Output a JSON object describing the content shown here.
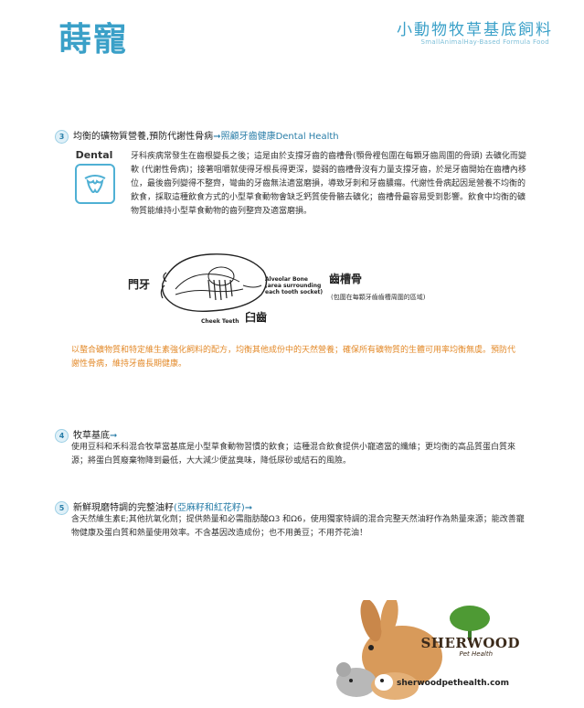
{
  "header": {
    "logo_text": "蒔寵",
    "title": "小動物牧草基底飼料",
    "subtitle": "SmallAnimalHay-Based Formula Food"
  },
  "section3": {
    "number": "3",
    "heading": "均衡的礦物質營養,預防代謝性骨病",
    "heading_link": "照顧牙齒健康Dental Health",
    "dental_label": "Dental",
    "paragraph": "牙科疾病常發生在齒根變長之後；這是由於支撐牙齒的齒槽骨(顎骨裡包圍在每顆牙齒周圍的骨頭) 去礦化而變軟 (代謝性骨病)；接著咀嚼就使得牙根長得更深，變弱的齒槽骨沒有力量支撐牙齒，於是牙齒開始在齒槽內移位，最後齒列變得不整齊，彎曲的牙齒無法適當磨損，導致牙刺和牙齒膿瘍。代謝性骨病起因是營養不均衡的飲食，採取這種飲食方式的小型草食動物會缺乏鈣質使骨骼去礦化；齒槽骨最容易受到影響。飲食中均衡的礦物質能維持小型草食動物的齒列整齊及適當磨損。",
    "diagram": {
      "incisor_label": "門牙",
      "cheek_teeth_en": "Cheek Teeth",
      "cheek_teeth_zh": "臼齒",
      "alveolar_en_line1": "Alveolar Bone",
      "alveolar_en_line2": "(area  surrounding",
      "alveolar_en_line3": "each tooth socket)",
      "alveolar_zh": "齒槽骨",
      "alveolar_note": "(包圍在每顆牙齒齒槽周圍的區域)"
    },
    "highlight": "以螯合礦物質和特定維生素強化飼料的配方，均衡其他成份中的天然營養；確保所有礦物質的生體可用率均衡無虞。預防代謝性骨病，維持牙齒長期健康。"
  },
  "section4": {
    "number": "4",
    "heading": "牧草基底",
    "paragraph": "使用豆科和禾科混合牧草當基底是小型草食動物習慣的飲食；這種混合飲食提供小寵適當的纖維；更均衡的高品質蛋白質來源；將蛋白質廢棄物降到最低，大大減少便盆臭味，降低尿砂或結石的風險。"
  },
  "section5": {
    "number": "5",
    "heading": "新鮮現磨特調的完整油籽",
    "heading_extra": "(亞麻籽和紅花籽)",
    "paragraph": "含天然維生素E;其他抗氧化劑；提供熱量和必需脂肪酸Ω3 和Ω6，使用獨家特調的混合完整天然油籽作為熱量來源；能改善寵物健康及蛋白質和熱量使用效率。不含基因改造成份；也不用黃豆；不用芥花油！"
  },
  "footer": {
    "brand": "SHERWOOD",
    "brand_sub": "Pet Health",
    "website": "sherwoodpethealth.com"
  },
  "colors": {
    "accent": "#3aa0c8",
    "orange": "#e38a2a"
  },
  "icons": [
    "tooth-icon",
    "arrow-right-icon",
    "rabbit-photo",
    "sherwood-tree-logo"
  ]
}
